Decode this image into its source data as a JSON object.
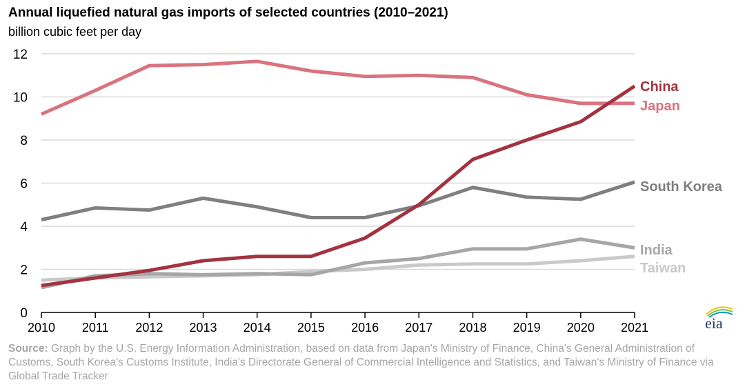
{
  "chart_data": {
    "type": "line",
    "title": "Annual liquefied natural gas imports of selected countries (2010–2021)",
    "ylabel": "billion cubic feet per day",
    "xlabel": "",
    "x": [
      2010,
      2011,
      2012,
      2013,
      2014,
      2015,
      2016,
      2017,
      2018,
      2019,
      2020,
      2021
    ],
    "xlim": [
      2010,
      2021
    ],
    "ylim": [
      0,
      12
    ],
    "yticks": [
      0,
      2,
      4,
      6,
      8,
      10,
      12
    ],
    "grid": true,
    "legend": "direct labels at line ends (right)",
    "series": [
      {
        "name": "Taiwan",
        "color": "#c9c9c9",
        "values": [
          1.5,
          1.6,
          1.65,
          1.7,
          1.75,
          1.9,
          2.0,
          2.2,
          2.25,
          2.25,
          2.4,
          2.6
        ]
      },
      {
        "name": "India",
        "color": "#a6a6a6",
        "values": [
          1.15,
          1.7,
          1.8,
          1.75,
          1.8,
          1.75,
          2.3,
          2.5,
          2.95,
          2.95,
          3.4,
          3.0
        ]
      },
      {
        "name": "South Korea",
        "color": "#7f7f7f",
        "values": [
          4.3,
          4.85,
          4.75,
          5.3,
          4.9,
          4.4,
          4.4,
          4.95,
          5.8,
          5.35,
          5.25,
          6.05
        ]
      },
      {
        "name": "Japan",
        "color": "#d9737f",
        "values": [
          9.2,
          10.3,
          11.45,
          11.5,
          11.65,
          11.2,
          10.95,
          11.0,
          10.9,
          10.1,
          9.7,
          9.7
        ]
      },
      {
        "name": "China",
        "color": "#a33340",
        "values": [
          1.25,
          1.6,
          1.95,
          2.4,
          2.6,
          2.6,
          3.45,
          5.0,
          7.1,
          8.0,
          8.85,
          10.5
        ]
      }
    ]
  },
  "source_label": "Source:",
  "source_text": " Graph by the U.S. Energy Information Administration, based on data from Japan's Ministry of Finance, China's General Administration of Customs, South Korea's Customs Institute, India's Directorate General of Commercial Intelligence and Statistics, and Taiwan's Ministry of Finance via Global Trade Tracker",
  "logo_text": "eia"
}
